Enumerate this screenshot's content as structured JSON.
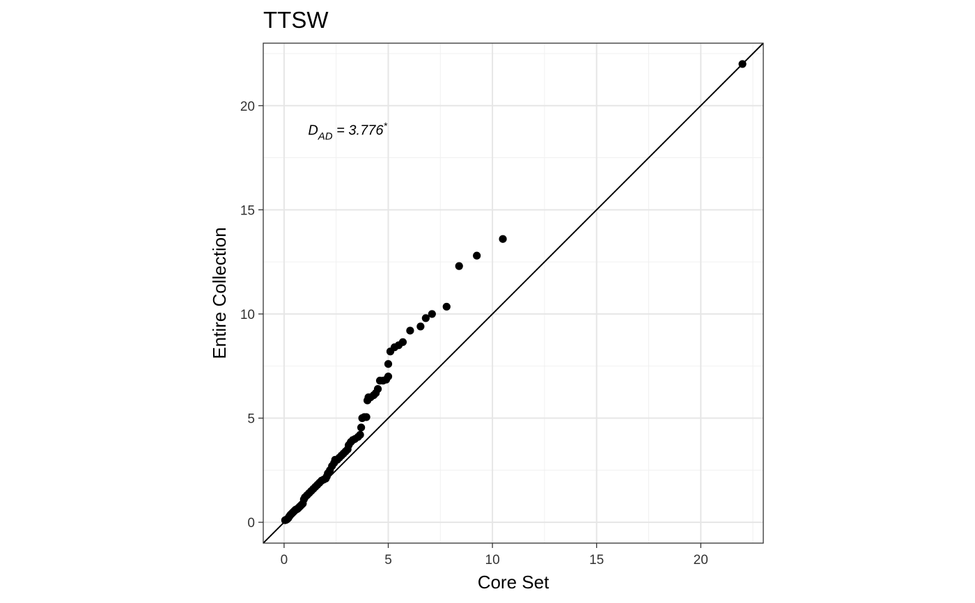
{
  "chart_data": {
    "type": "scatter",
    "title": "TTSW",
    "xlabel": "Core Set",
    "ylabel": "Entire Collection",
    "xlim": [
      -1,
      23
    ],
    "ylim": [
      -1,
      23
    ],
    "x_ticks": [
      0,
      5,
      10,
      15,
      20
    ],
    "y_ticks": [
      0,
      5,
      10,
      15,
      20
    ],
    "x_tick_labels": [
      "0",
      "5",
      "10",
      "15",
      "20"
    ],
    "y_tick_labels": [
      "0",
      "5",
      "10",
      "15",
      "20"
    ],
    "grid": true,
    "reference_line": {
      "type": "identity",
      "slope": 1,
      "intercept": 0
    },
    "annotation": {
      "prefix": "D",
      "subscript": "AD",
      "text": " = 3.776",
      "superscript": "*",
      "x": 1.15,
      "y": 18.6
    },
    "points": [
      [
        0.05,
        0.1
      ],
      [
        0.1,
        0.12
      ],
      [
        0.15,
        0.15
      ],
      [
        0.2,
        0.2
      ],
      [
        0.25,
        0.28
      ],
      [
        0.3,
        0.35
      ],
      [
        0.35,
        0.4
      ],
      [
        0.4,
        0.45
      ],
      [
        0.45,
        0.5
      ],
      [
        0.5,
        0.55
      ],
      [
        0.55,
        0.6
      ],
      [
        0.6,
        0.62
      ],
      [
        0.65,
        0.65
      ],
      [
        0.7,
        0.7
      ],
      [
        0.75,
        0.75
      ],
      [
        0.8,
        0.8
      ],
      [
        0.85,
        0.85
      ],
      [
        0.9,
        0.9
      ],
      [
        0.95,
        1.1
      ],
      [
        1.0,
        1.2
      ],
      [
        1.1,
        1.3
      ],
      [
        1.2,
        1.4
      ],
      [
        1.3,
        1.5
      ],
      [
        1.4,
        1.6
      ],
      [
        1.5,
        1.7
      ],
      [
        1.6,
        1.8
      ],
      [
        1.7,
        1.9
      ],
      [
        1.8,
        2.0
      ],
      [
        1.9,
        2.05
      ],
      [
        2.0,
        2.1
      ],
      [
        2.05,
        2.2
      ],
      [
        2.1,
        2.35
      ],
      [
        2.2,
        2.5
      ],
      [
        2.3,
        2.7
      ],
      [
        2.4,
        2.85
      ],
      [
        2.45,
        3.0
      ],
      [
        2.55,
        3.0
      ],
      [
        2.65,
        3.1
      ],
      [
        2.75,
        3.2
      ],
      [
        2.85,
        3.3
      ],
      [
        2.95,
        3.4
      ],
      [
        3.05,
        3.5
      ],
      [
        3.1,
        3.7
      ],
      [
        3.2,
        3.85
      ],
      [
        3.3,
        3.95
      ],
      [
        3.4,
        4.0
      ],
      [
        3.55,
        4.1
      ],
      [
        3.65,
        4.2
      ],
      [
        3.7,
        4.55
      ],
      [
        3.75,
        5.0
      ],
      [
        3.85,
        5.05
      ],
      [
        3.95,
        5.05
      ],
      [
        4.0,
        5.85
      ],
      [
        4.05,
        6.0
      ],
      [
        4.15,
        6.0
      ],
      [
        4.3,
        6.1
      ],
      [
        4.4,
        6.2
      ],
      [
        4.5,
        6.4
      ],
      [
        4.6,
        6.8
      ],
      [
        4.75,
        6.8
      ],
      [
        4.9,
        6.85
      ],
      [
        5.0,
        7.0
      ],
      [
        5.0,
        7.6
      ],
      [
        5.1,
        8.2
      ],
      [
        5.3,
        8.4
      ],
      [
        5.5,
        8.5
      ],
      [
        5.7,
        8.65
      ],
      [
        6.05,
        9.2
      ],
      [
        6.55,
        9.4
      ],
      [
        6.8,
        9.8
      ],
      [
        7.1,
        10.0
      ],
      [
        7.8,
        10.35
      ],
      [
        8.4,
        12.3
      ],
      [
        9.25,
        12.8
      ],
      [
        10.5,
        13.6
      ],
      [
        22.0,
        22.0
      ]
    ]
  }
}
